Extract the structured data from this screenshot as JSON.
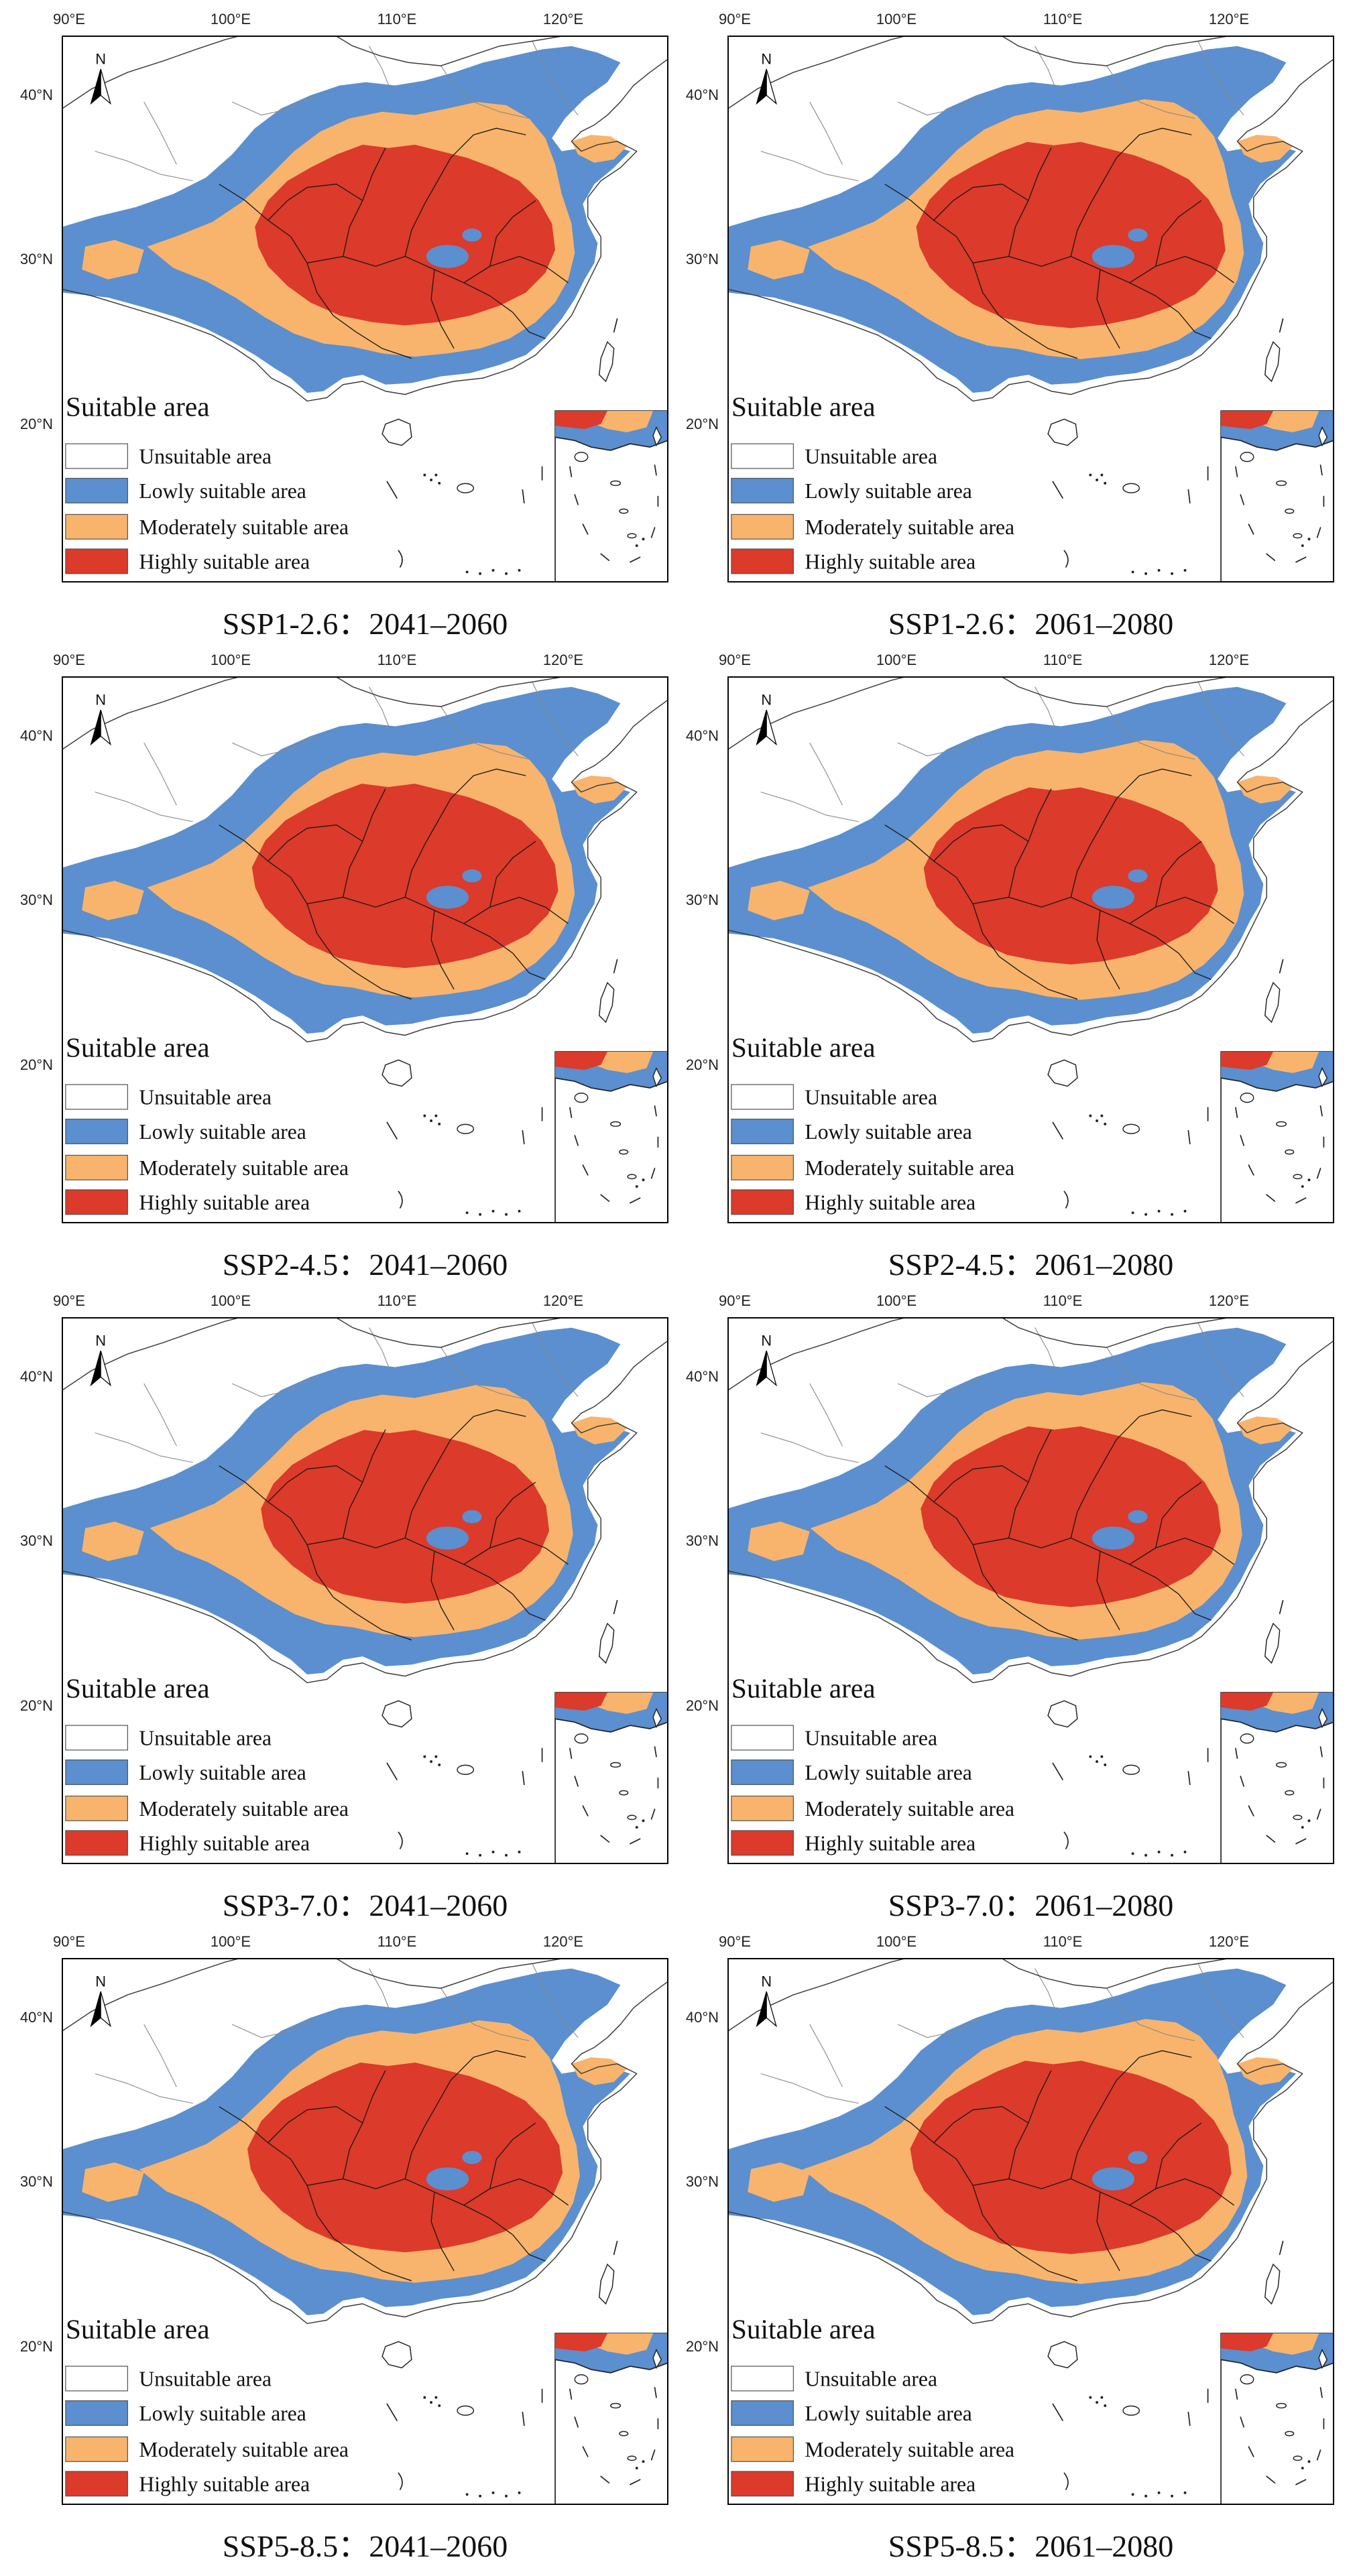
{
  "longitude_ticks": [
    "90°E",
    "100°E",
    "110°E",
    "120°E"
  ],
  "latitude_ticks": [
    "40°N",
    "30°N",
    "20°N"
  ],
  "north_arrow_label": "N",
  "legend": {
    "title": "Suitable area",
    "items": [
      {
        "label": "Unsuitable area",
        "color": "#ffffff"
      },
      {
        "label": "Lowly suitable area",
        "color": "#5b8fcf"
      },
      {
        "label": "Moderately suitable area",
        "color": "#f8b46c"
      },
      {
        "label": "Highly suitable area",
        "color": "#dc3a2a"
      }
    ]
  },
  "caption_separator": "：",
  "panels": [
    {
      "scenario": "SSP1-2.6",
      "period": "2041–2060"
    },
    {
      "scenario": "SSP1-2.6",
      "period": "2061–2080"
    },
    {
      "scenario": "SSP2-4.5",
      "period": "2041–2060"
    },
    {
      "scenario": "SSP2-4.5",
      "period": "2061–2080"
    },
    {
      "scenario": "SSP3-7.0",
      "period": "2041–2060"
    },
    {
      "scenario": "SSP3-7.0",
      "period": "2061–2080"
    },
    {
      "scenario": "SSP5-8.5",
      "period": "2041–2060"
    },
    {
      "scenario": "SSP5-8.5",
      "period": "2061–2080"
    }
  ]
}
